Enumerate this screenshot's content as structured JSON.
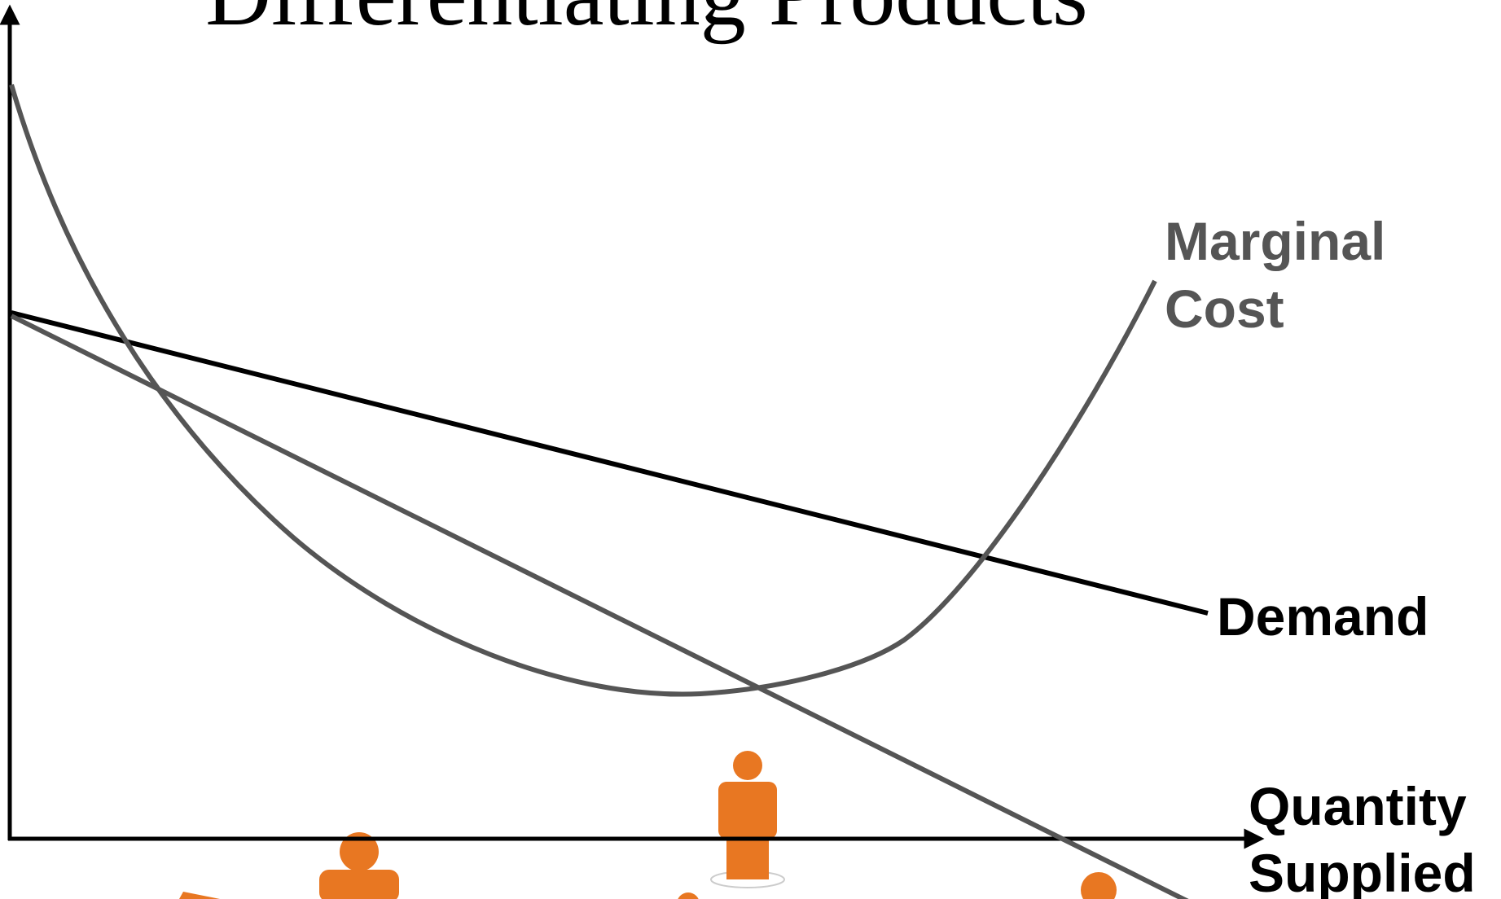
{
  "title": "Differentiating Products",
  "labels": {
    "marginal_cost": [
      "Marginal",
      "Cost"
    ],
    "demand": "Demand",
    "x_axis": [
      "Quantity",
      "Supplied"
    ]
  }
}
